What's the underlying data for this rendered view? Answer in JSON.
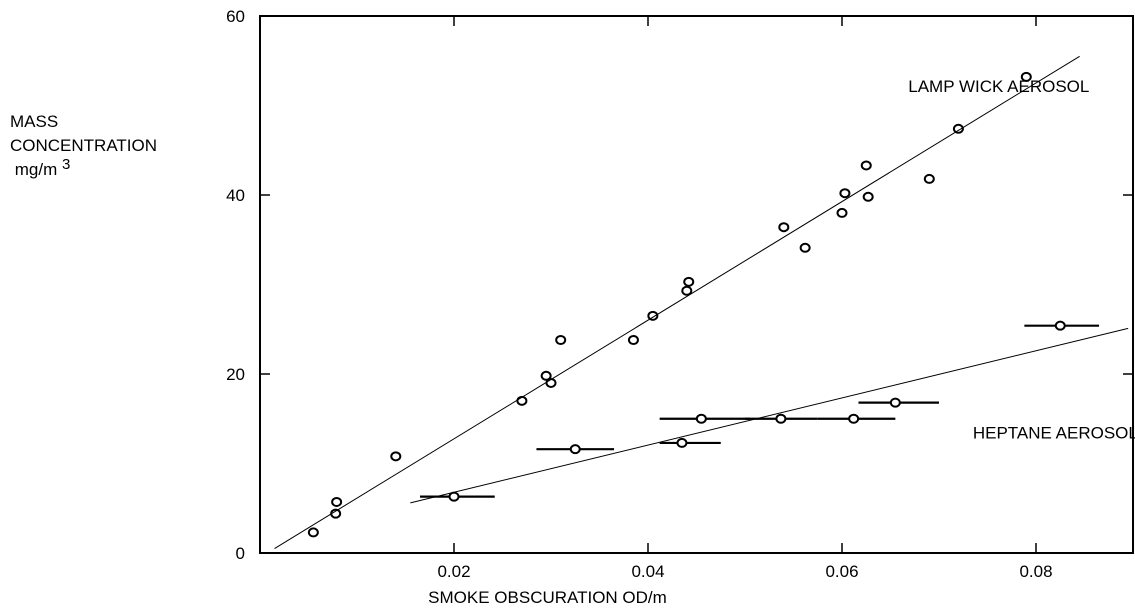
{
  "chart_data": {
    "type": "scatter",
    "xlabel": "SMOKE OBSCURATION OD/m",
    "ylabel_lines": [
      "MASS",
      "CONCENTRATION"
    ],
    "ylabel_unit_base": "mg/m",
    "ylabel_unit_exp": "3",
    "xlim": [
      0.0,
      0.09
    ],
    "ylim": [
      0,
      60
    ],
    "xticks": [
      0.02,
      0.04,
      0.06,
      0.08
    ],
    "xtick_labels": [
      "0.02",
      "0.04",
      "0.06",
      "0.08"
    ],
    "yticks": [
      0,
      20,
      40,
      60
    ],
    "ytick_labels": [
      "0",
      "20",
      "40",
      "60"
    ],
    "grid": false,
    "series": [
      {
        "name": "LAMP WICK AEROSOL",
        "marker": "open-circle",
        "points": [
          [
            0.0055,
            2.3
          ],
          [
            0.0078,
            4.4
          ],
          [
            0.0079,
            5.7
          ],
          [
            0.014,
            10.8
          ],
          [
            0.027,
            17.0
          ],
          [
            0.0295,
            19.8
          ],
          [
            0.03,
            19.0
          ],
          [
            0.031,
            23.8
          ],
          [
            0.0385,
            23.8
          ],
          [
            0.0405,
            26.5
          ],
          [
            0.044,
            29.3
          ],
          [
            0.0442,
            30.3
          ],
          [
            0.054,
            36.4
          ],
          [
            0.0562,
            34.1
          ],
          [
            0.06,
            38.0
          ],
          [
            0.0603,
            40.2
          ],
          [
            0.0625,
            43.3
          ],
          [
            0.0627,
            39.8
          ],
          [
            0.069,
            41.8
          ],
          [
            0.072,
            47.4
          ],
          [
            0.079,
            53.2
          ]
        ],
        "fit_line": [
          [
            0.0015,
            0.5
          ],
          [
            0.0845,
            55.5
          ]
        ]
      },
      {
        "name": "HEPTANE AEROSOL",
        "marker": "filled-circle-with-xerror",
        "points": [
          {
            "x": 0.02,
            "y": 6.3,
            "xerr": [
              0.0165,
              0.0242
            ]
          },
          {
            "x": 0.0325,
            "y": 11.6,
            "xerr": [
              0.0285,
              0.0365
            ]
          },
          {
            "x": 0.0435,
            "y": 12.3,
            "xerr": [
              0.0412,
              0.0475
            ]
          },
          {
            "x": 0.0455,
            "y": 15.0,
            "xerr": [
              0.0412,
              0.0505
            ]
          },
          {
            "x": 0.0537,
            "y": 15.0,
            "xerr": [
              0.05,
              0.0575
            ]
          },
          {
            "x": 0.0612,
            "y": 15.0,
            "xerr": [
              0.0575,
              0.0655
            ]
          },
          {
            "x": 0.0655,
            "y": 16.8,
            "xerr": [
              0.0617,
              0.07
            ]
          },
          {
            "x": 0.0825,
            "y": 25.4,
            "xerr": [
              0.0788,
              0.0865
            ]
          }
        ],
        "fit_line": [
          [
            0.0155,
            5.6
          ],
          [
            0.0895,
            25.1
          ]
        ]
      }
    ]
  }
}
